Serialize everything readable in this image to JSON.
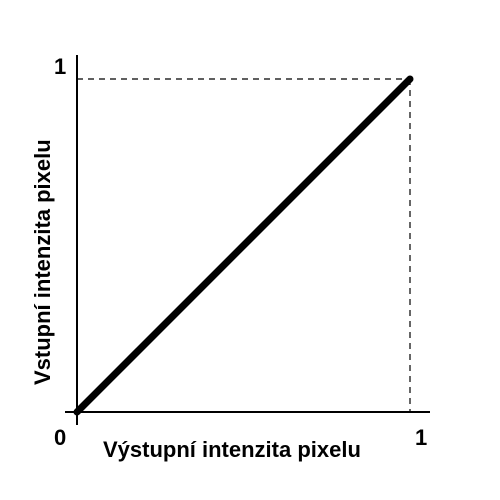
{
  "chart_data": {
    "type": "line",
    "title": "",
    "xlabel": "Výstupní intenzita pixelu",
    "ylabel": "Vstupní intenzita pixelu",
    "xlim": [
      0,
      1
    ],
    "ylim": [
      0,
      1
    ],
    "origin_label": "0",
    "x_tick_labels": [
      "1"
    ],
    "y_tick_labels": [
      "1"
    ],
    "grid": false,
    "guide_lines": "dashed",
    "series": [
      {
        "x": [
          0,
          1
        ],
        "y": [
          0,
          1
        ],
        "color": "#000000"
      }
    ]
  }
}
